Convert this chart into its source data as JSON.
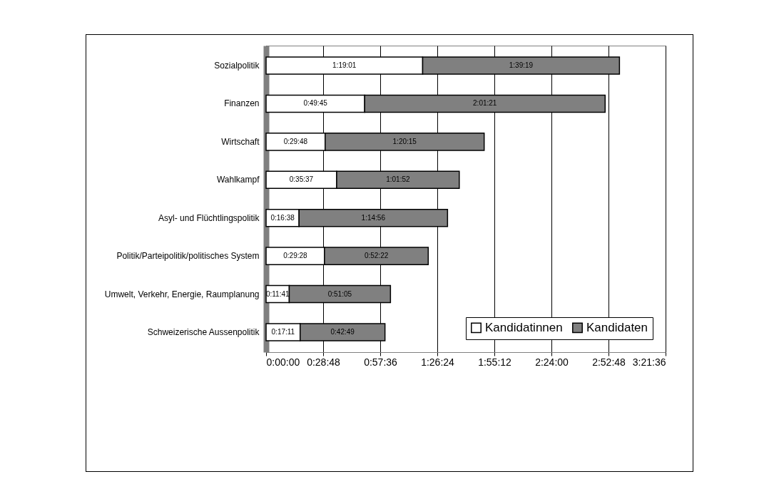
{
  "chart_data": {
    "type": "bar",
    "orientation": "horizontal",
    "stacked": true,
    "categories": [
      "Sozialpolitik",
      "Finanzen",
      "Wirtschaft",
      "Wahlkampf",
      "Asyl- und Flüchtlingspolitik",
      "Politik/Parteipolitik/politisches System",
      "Umwelt, Verkehr, Energie, Raumplanung",
      "Schweizerische Aussenpolitik"
    ],
    "series": [
      {
        "name": "Kandidatinnen",
        "color": "#ffffff",
        "values": [
          4741,
          2985,
          1788,
          2137,
          998,
          1768,
          701,
          1031
        ],
        "value_labels": [
          "1:19:01",
          "0:49:45",
          "0:29:48",
          "0:35:37",
          "0:16:38",
          "0:29:28",
          "0:11:41",
          "0:17:11"
        ]
      },
      {
        "name": "Kandidaten",
        "color": "#808080",
        "values": [
          5959,
          7281,
          4815,
          3712,
          4496,
          3142,
          3065,
          2569
        ],
        "value_labels": [
          "1:39:19",
          "2:01:21",
          "1:20:15",
          "1:01:52",
          "1:14:56",
          "0:52:22",
          "0:51:05",
          "0:42:49"
        ]
      }
    ],
    "xlim": [
      0,
      12096
    ],
    "xticks": [
      {
        "value": 0,
        "label": "0:00:00"
      },
      {
        "value": 1728,
        "label": "0:28:48"
      },
      {
        "value": 3456,
        "label": "0:57:36"
      },
      {
        "value": 5184,
        "label": "1:26:24"
      },
      {
        "value": 6912,
        "label": "1:55:12"
      },
      {
        "value": 8640,
        "label": "2:24:00"
      },
      {
        "value": 10368,
        "label": "2:52:48"
      },
      {
        "value": 12096,
        "label": "3:21:36"
      }
    ],
    "grid": "x",
    "legend": "bottom right"
  }
}
